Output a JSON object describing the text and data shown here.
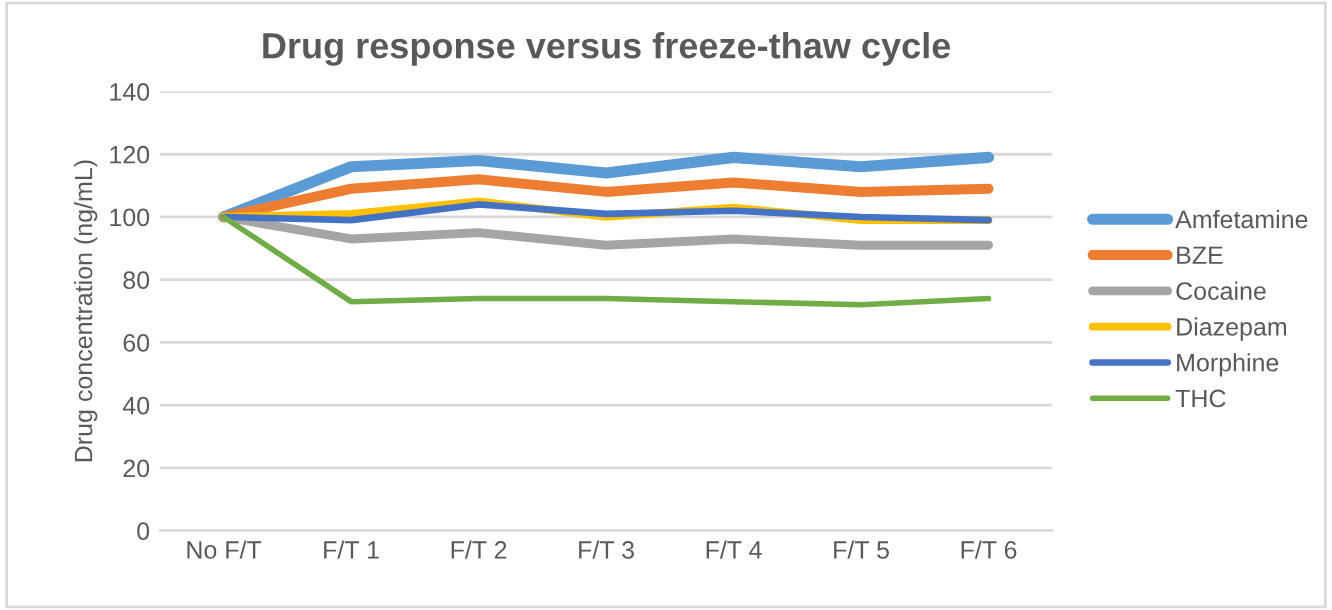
{
  "chart_data": {
    "type": "line",
    "title": "Drug response versus freeze-thaw cycle",
    "ylabel": "Drug concentration (ng/mL)",
    "categories": [
      "No F/T",
      "F/T 1",
      "F/T 2",
      "F/T 3",
      "F/T 4",
      "F/T 5",
      "F/T 6"
    ],
    "series": [
      {
        "name": "Amfetamine",
        "color": "#5b9bd5",
        "values": [
          100,
          116,
          118,
          114,
          119,
          116,
          119
        ]
      },
      {
        "name": "BZE",
        "color": "#ed7d31",
        "values": [
          100,
          109,
          112,
          108,
          111,
          108,
          109
        ]
      },
      {
        "name": "Cocaine",
        "color": "#a5a5a5",
        "values": [
          100,
          93,
          95,
          91,
          93,
          91,
          91
        ]
      },
      {
        "name": "Diazepam",
        "color": "#ffc000",
        "values": [
          100,
          101,
          105,
          100,
          103,
          99,
          99
        ]
      },
      {
        "name": "Morphine",
        "color": "#4472c4",
        "values": [
          100,
          99,
          104,
          101,
          102,
          100,
          99
        ]
      },
      {
        "name": "THC",
        "color": "#70ad47",
        "values": [
          100,
          73,
          74,
          74,
          73,
          72,
          74
        ]
      }
    ],
    "ylim": [
      0,
      140
    ],
    "yticks": [
      0,
      20,
      40,
      60,
      80,
      100,
      120,
      140
    ],
    "grid": "y",
    "legend": "right",
    "marker": "none",
    "line_style": "solid"
  }
}
